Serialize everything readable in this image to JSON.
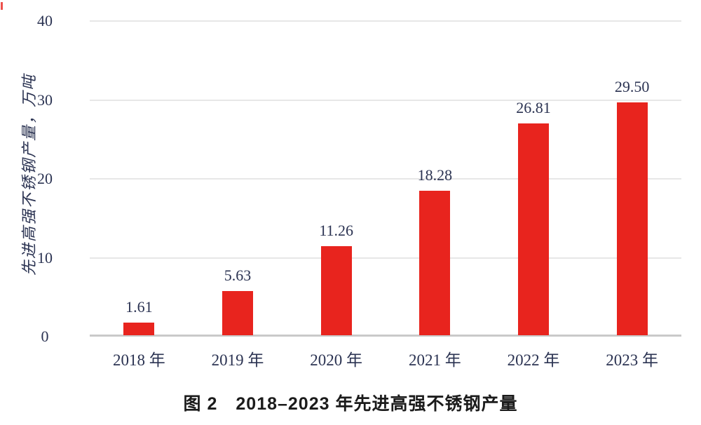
{
  "chart_data": {
    "type": "bar",
    "categories": [
      "2018 年",
      "2019 年",
      "2020 年",
      "2021 年",
      "2022 年",
      "2023 年"
    ],
    "values": [
      1.61,
      5.63,
      11.26,
      18.28,
      26.81,
      29.5
    ],
    "value_labels": [
      "1.61",
      "5.63",
      "11.26",
      "18.28",
      "26.81",
      "29.50"
    ],
    "title": "图 2　2018–2023 年先进高强不锈钢产量",
    "xlabel": "",
    "ylabel": "先进高强不锈钢产量，万吨",
    "yticks": [
      0,
      10,
      20,
      30,
      40
    ],
    "ylim": [
      0,
      40
    ],
    "grid": true,
    "legend": false,
    "bar_color": "#e8241e"
  },
  "colors": {
    "bar": "#e8241e",
    "axis_text": "#2b3352",
    "caption_text": "#1b1b1b",
    "gridline": "#e7e7e7",
    "baseline": "#c9c9c9"
  }
}
